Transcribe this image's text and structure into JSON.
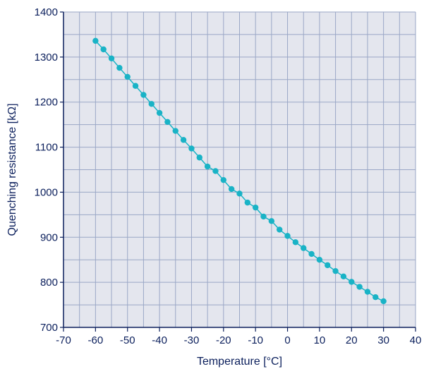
{
  "chart_data": {
    "type": "line",
    "title": "",
    "xlabel": "Temperature [°C]",
    "ylabel": "Quenching resistance [kΩ]",
    "xlim": [
      -70,
      40
    ],
    "ylim": [
      700,
      1400
    ],
    "x_ticks": [
      "-70",
      "-60",
      "-50",
      "-40",
      "-30",
      "-20",
      "-10",
      "0",
      "10",
      "20",
      "30",
      "40"
    ],
    "y_ticks": [
      "700",
      "800",
      "900",
      "1000",
      "1100",
      "1200",
      "1300",
      "1400"
    ],
    "grid": true,
    "series": [
      {
        "color": "#19b3c6",
        "x": [
          -60,
          -57.5,
          -55,
          -52.5,
          -50,
          -47.5,
          -45,
          -42.5,
          -40,
          -37.5,
          -35,
          -32.5,
          -30,
          -27.5,
          -25,
          -22.5,
          -20,
          -17.5,
          -15,
          -12.5,
          -10,
          -7.5,
          -5,
          -2.5,
          0,
          2.5,
          5,
          7.5,
          10,
          12.5,
          15,
          17.5,
          20,
          22.5,
          25,
          27.5,
          30
        ],
        "y": [
          1336,
          1317,
          1297,
          1276,
          1256,
          1236,
          1216,
          1196,
          1176,
          1156,
          1136,
          1116,
          1097,
          1077,
          1057,
          1047,
          1027,
          1007,
          997,
          977,
          966,
          946,
          936,
          917,
          903,
          889,
          876,
          863,
          850,
          838,
          825,
          813,
          801,
          790,
          779,
          767,
          758
        ]
      }
    ],
    "colors": {
      "plot_background": "#e4e6ee",
      "grid": "#9aa7c6",
      "axis": "#0b1f5c",
      "text": "#0b1f5c"
    }
  }
}
